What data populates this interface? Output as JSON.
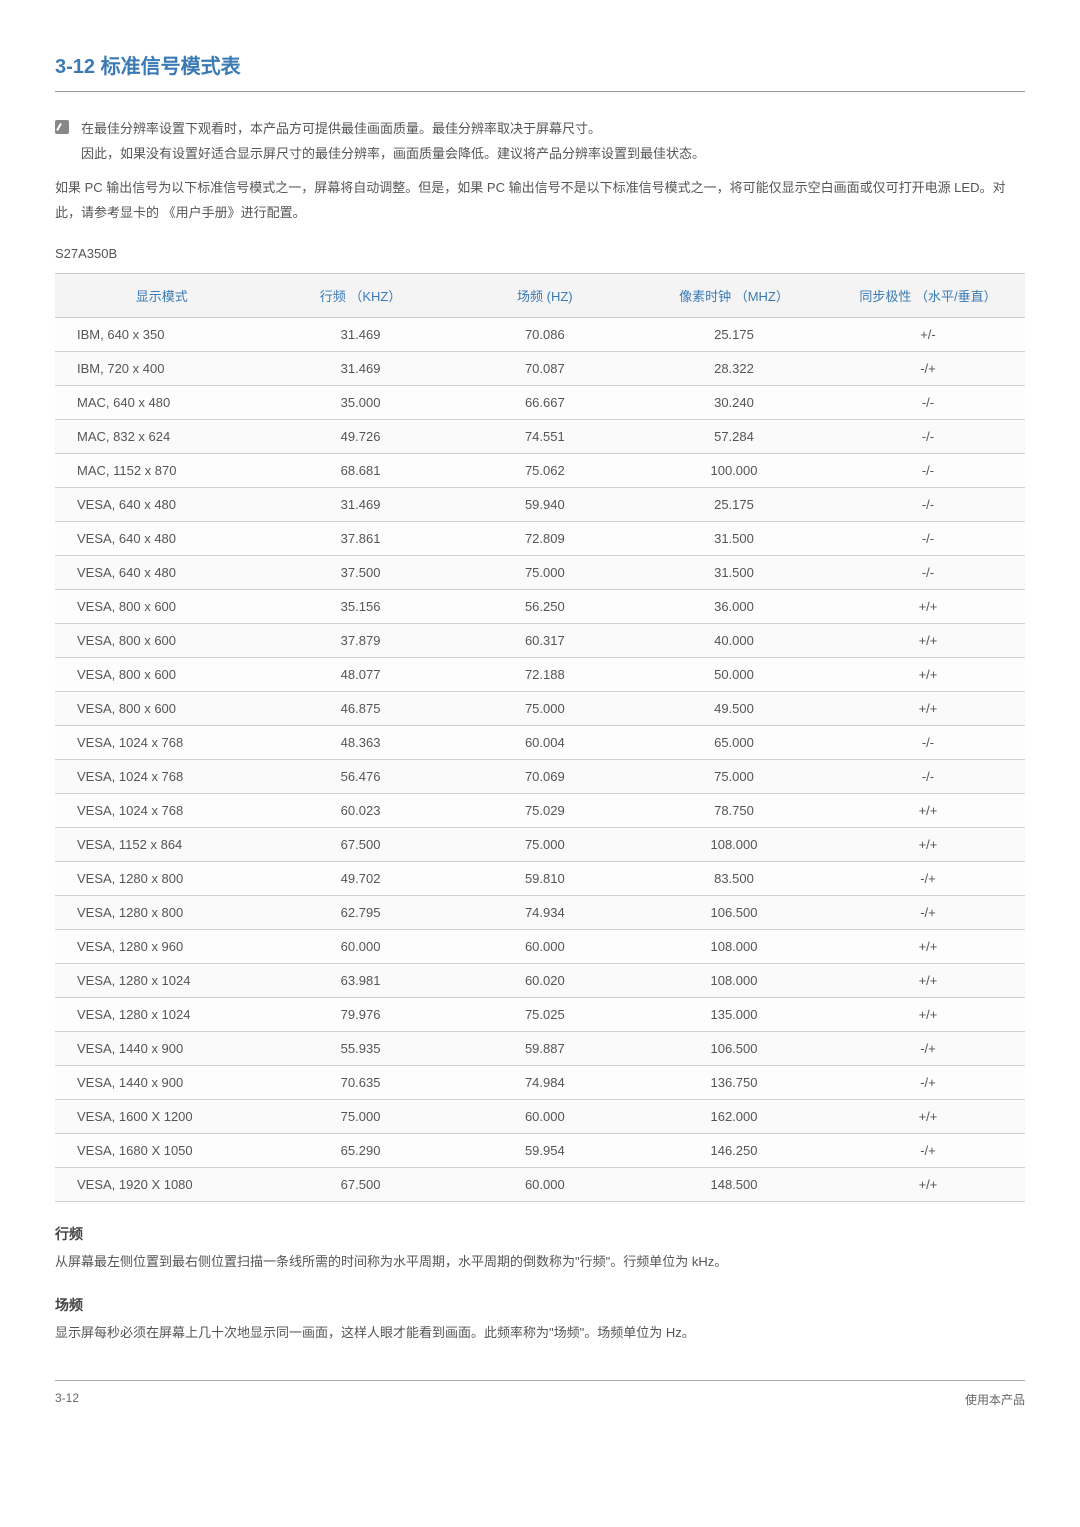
{
  "header": {
    "section_num": "3-12",
    "section_title": "标准信号模式表"
  },
  "note": {
    "line1": "在最佳分辨率设置下观看时，本产品方可提供最佳画面质量。最佳分辨率取决于屏幕尺寸。",
    "line2": "因此，如果没有设置好适合显示屏尺寸的最佳分辨率，画面质量会降低。建议将产品分辨率设置到最佳状态。"
  },
  "para1": "如果 PC 输出信号为以下标准信号模式之一，屏幕将自动调整。但是，如果 PC 输出信号不是以下标准信号模式之一，将可能仅显示空白画面或仅可打开电源 LED。对此，请参考显卡的 《用户手册》进行配置。",
  "model": "S27A350B",
  "table": {
    "headers": [
      "显示模式",
      "行频 （KHZ）",
      "场频 (HZ)",
      "像素时钟 （MHZ）",
      "同步极性 （水平/垂直）"
    ],
    "rows": [
      [
        "IBM, 640 x 350",
        "31.469",
        "70.086",
        "25.175",
        "+/-"
      ],
      [
        "IBM, 720 x 400",
        "31.469",
        "70.087",
        "28.322",
        "-/+"
      ],
      [
        "MAC, 640 x 480",
        "35.000",
        "66.667",
        "30.240",
        "-/-"
      ],
      [
        "MAC, 832 x 624",
        "49.726",
        "74.551",
        "57.284",
        "-/-"
      ],
      [
        "MAC, 1152 x 870",
        "68.681",
        "75.062",
        "100.000",
        "-/-"
      ],
      [
        "VESA, 640 x 480",
        "31.469",
        "59.940",
        "25.175",
        "-/-"
      ],
      [
        "VESA, 640 x 480",
        "37.861",
        "72.809",
        "31.500",
        "-/-"
      ],
      [
        "VESA, 640 x 480",
        "37.500",
        "75.000",
        "31.500",
        "-/-"
      ],
      [
        "VESA, 800 x 600",
        "35.156",
        "56.250",
        "36.000",
        "+/+"
      ],
      [
        "VESA, 800 x 600",
        "37.879",
        "60.317",
        "40.000",
        "+/+"
      ],
      [
        "VESA, 800 x 600",
        "48.077",
        "72.188",
        "50.000",
        "+/+"
      ],
      [
        "VESA, 800 x 600",
        "46.875",
        "75.000",
        "49.500",
        "+/+"
      ],
      [
        "VESA, 1024 x 768",
        "48.363",
        "60.004",
        "65.000",
        "-/-"
      ],
      [
        "VESA, 1024 x 768",
        "56.476",
        "70.069",
        "75.000",
        "-/-"
      ],
      [
        "VESA, 1024 x 768",
        "60.023",
        "75.029",
        "78.750",
        "+/+"
      ],
      [
        "VESA, 1152 x 864",
        "67.500",
        "75.000",
        "108.000",
        "+/+"
      ],
      [
        "VESA, 1280 x 800",
        "49.702",
        "59.810",
        "83.500",
        "-/+"
      ],
      [
        "VESA, 1280 x 800",
        "62.795",
        "74.934",
        "106.500",
        "-/+"
      ],
      [
        "VESA, 1280 x 960",
        "60.000",
        "60.000",
        "108.000",
        "+/+"
      ],
      [
        "VESA, 1280 x 1024",
        "63.981",
        "60.020",
        "108.000",
        "+/+"
      ],
      [
        "VESA, 1280 x 1024",
        "79.976",
        "75.025",
        "135.000",
        "+/+"
      ],
      [
        "VESA, 1440 x 900",
        "55.935",
        "59.887",
        "106.500",
        "-/+"
      ],
      [
        "VESA, 1440 x 900",
        "70.635",
        "74.984",
        "136.750",
        "-/+"
      ],
      [
        "VESA, 1600 X 1200",
        "75.000",
        "60.000",
        "162.000",
        "+/+"
      ],
      [
        "VESA, 1680 X 1050",
        "65.290",
        "59.954",
        "146.250",
        "-/+"
      ],
      [
        "VESA, 1920 X 1080",
        "67.500",
        "60.000",
        "148.500",
        "+/+"
      ]
    ]
  },
  "defs": {
    "t1": "行频",
    "d1": "从屏幕最左侧位置到最右侧位置扫描一条线所需的时间称为水平周期，水平周期的倒数称为\"行频\"。行频单位为 kHz。",
    "t2": "场频",
    "d2": "显示屏每秒必须在屏幕上几十次地显示同一画面，这样人眼才能看到画面。此频率称为\"场频\"。场频单位为 Hz。"
  },
  "footer": {
    "left": "3-12",
    "right": "使用本产品"
  }
}
